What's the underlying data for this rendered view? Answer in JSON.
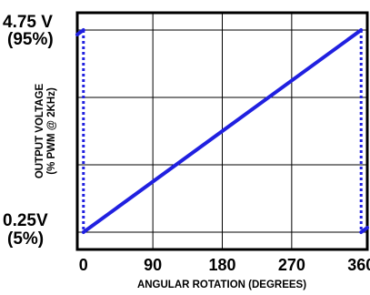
{
  "chart_data": {
    "type": "line",
    "title": "",
    "xlabel": "ANGULAR ROTATION (DEGREES)",
    "ylabel_line1": "OUTPUT VOLTAGE",
    "ylabel_line2": "(% PWM @ 2KHz)",
    "x_ticks": [
      "0",
      "90",
      "180",
      "270",
      "360"
    ],
    "y_tick_labels": [
      {
        "value": 95,
        "line1": "4.75 V",
        "line2": "(95%)"
      },
      {
        "value": 5,
        "line1": "0.25V",
        "line2": "(5%)"
      }
    ],
    "xlim": [
      -8,
      368
    ],
    "ylim": [
      5,
      95
    ],
    "grid": true,
    "line_color": "#2020e0",
    "series": [
      {
        "values_x": [
          -8,
          0,
          0,
          360,
          360,
          368
        ],
        "values_y": [
          93,
          95,
          5,
          95,
          5,
          7
        ],
        "vertical_segments_dotted": true
      }
    ]
  }
}
